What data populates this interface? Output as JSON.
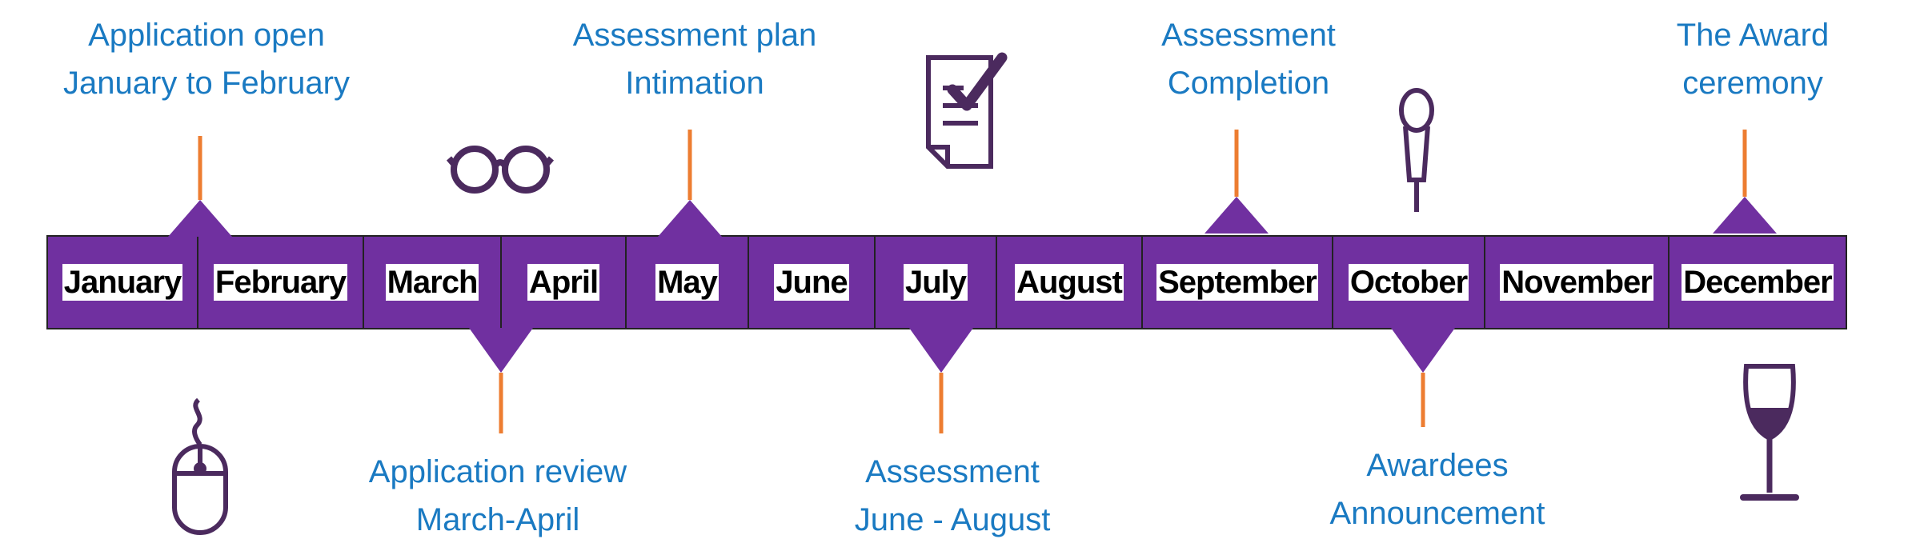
{
  "colors": {
    "bar": "#7030a0",
    "connector": "#ed7d31",
    "label_text": "#1a7ac2",
    "month_text": "#000000",
    "icon": "#4b2a5e"
  },
  "months": [
    "January",
    "February",
    "March",
    "April",
    "May",
    "June",
    "July",
    "August",
    "September",
    "October",
    "November",
    "December"
  ],
  "milestones_above": [
    {
      "line1": "Application open",
      "line2": "January to February"
    },
    {
      "line1": "Assessment plan",
      "line2": "Intimation"
    },
    {
      "line1": "Assessment",
      "line2": "Completion"
    },
    {
      "line1": "The Award",
      "line2": "ceremony"
    }
  ],
  "milestones_below": [
    {
      "line1": "Application review",
      "line2": "March-April"
    },
    {
      "line1": "Assessment",
      "line2": "June - August"
    },
    {
      "line1": "Awardees",
      "line2": "Announcement"
    }
  ],
  "icons": [
    "glasses-icon",
    "checklist-document-icon",
    "microphone-icon",
    "computer-mouse-icon",
    "wine-glass-icon"
  ]
}
